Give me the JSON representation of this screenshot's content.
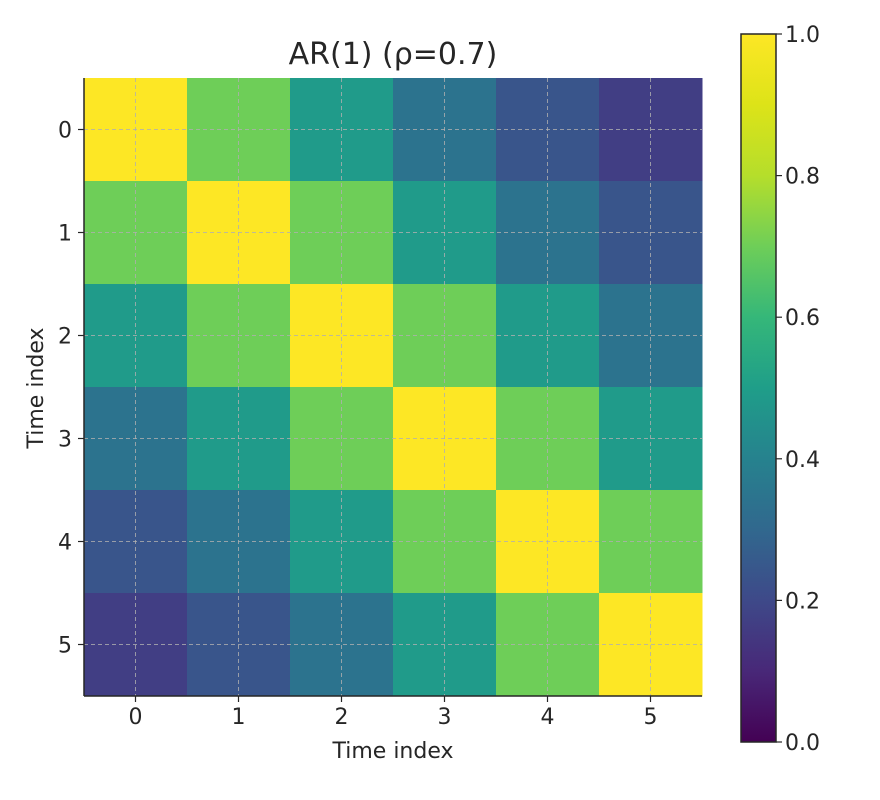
{
  "chart_data": {
    "type": "heatmap",
    "title": "AR(1) (ρ=0.7)",
    "xlabel": "Time index",
    "ylabel": "Time index",
    "x_categories": [
      "0",
      "1",
      "2",
      "3",
      "4",
      "5"
    ],
    "y_categories": [
      "0",
      "1",
      "2",
      "3",
      "4",
      "5"
    ],
    "values": [
      [
        1.0,
        0.7,
        0.49,
        0.343,
        0.2401,
        0.16807
      ],
      [
        0.7,
        1.0,
        0.7,
        0.49,
        0.343,
        0.2401
      ],
      [
        0.49,
        0.7,
        1.0,
        0.7,
        0.49,
        0.343
      ],
      [
        0.343,
        0.49,
        0.7,
        1.0,
        0.7,
        0.49
      ],
      [
        0.2401,
        0.343,
        0.49,
        0.7,
        1.0,
        0.7
      ],
      [
        0.16807,
        0.2401,
        0.343,
        0.49,
        0.7,
        1.0
      ]
    ],
    "colormap": "viridis",
    "colorbar": {
      "range": [
        0.0,
        1.0
      ],
      "ticks": [
        0.0,
        0.2,
        0.4,
        0.6,
        0.8,
        1.0
      ],
      "tick_labels": [
        "0.0",
        "0.2",
        "0.4",
        "0.6",
        "0.8",
        "1.0"
      ]
    },
    "grid": true
  }
}
